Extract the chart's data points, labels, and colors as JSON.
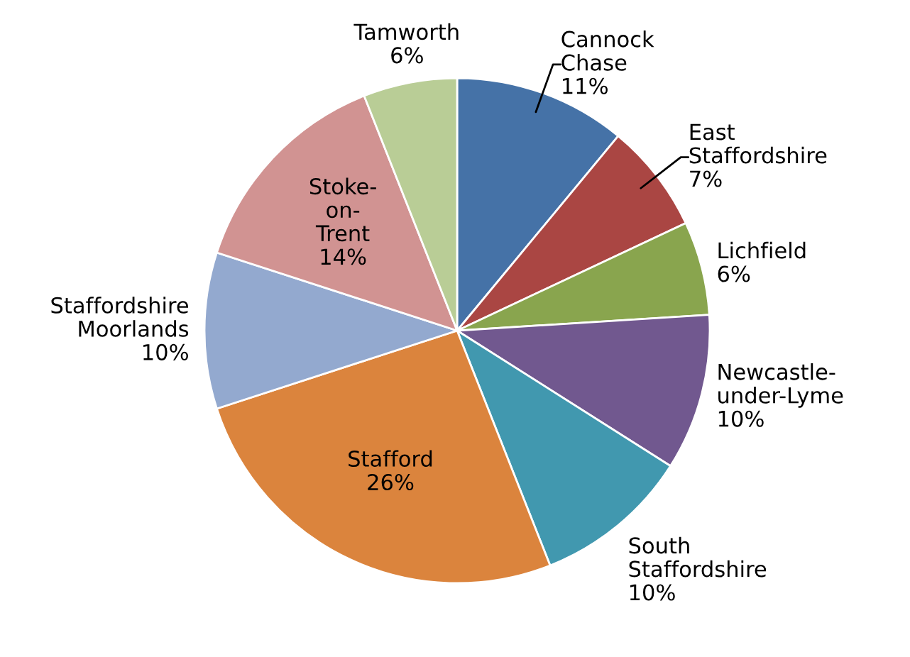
{
  "chart_data": {
    "type": "pie",
    "categories": [
      "Cannock\nChase",
      "East\nStaffordshire",
      "Lichfield",
      "Newcastle-\nunder-Lyme",
      "South\nStaffordshire",
      "Stafford",
      "Staffordshire\nMoorlands",
      "Stoke-\non-\nTrent",
      "Tamworth"
    ],
    "values": [
      11,
      7,
      6,
      10,
      10,
      26,
      10,
      14,
      6
    ],
    "colors": [
      "#4572a7",
      "#aa4643",
      "#89a54e",
      "#71588f",
      "#4198af",
      "#db843d",
      "#93a9cf",
      "#d19392",
      "#b9cd96"
    ],
    "value_labels": [
      "11%",
      "7%",
      "6%",
      "10%",
      "10%",
      "26%",
      "10%",
      "14%",
      "6%"
    ]
  }
}
